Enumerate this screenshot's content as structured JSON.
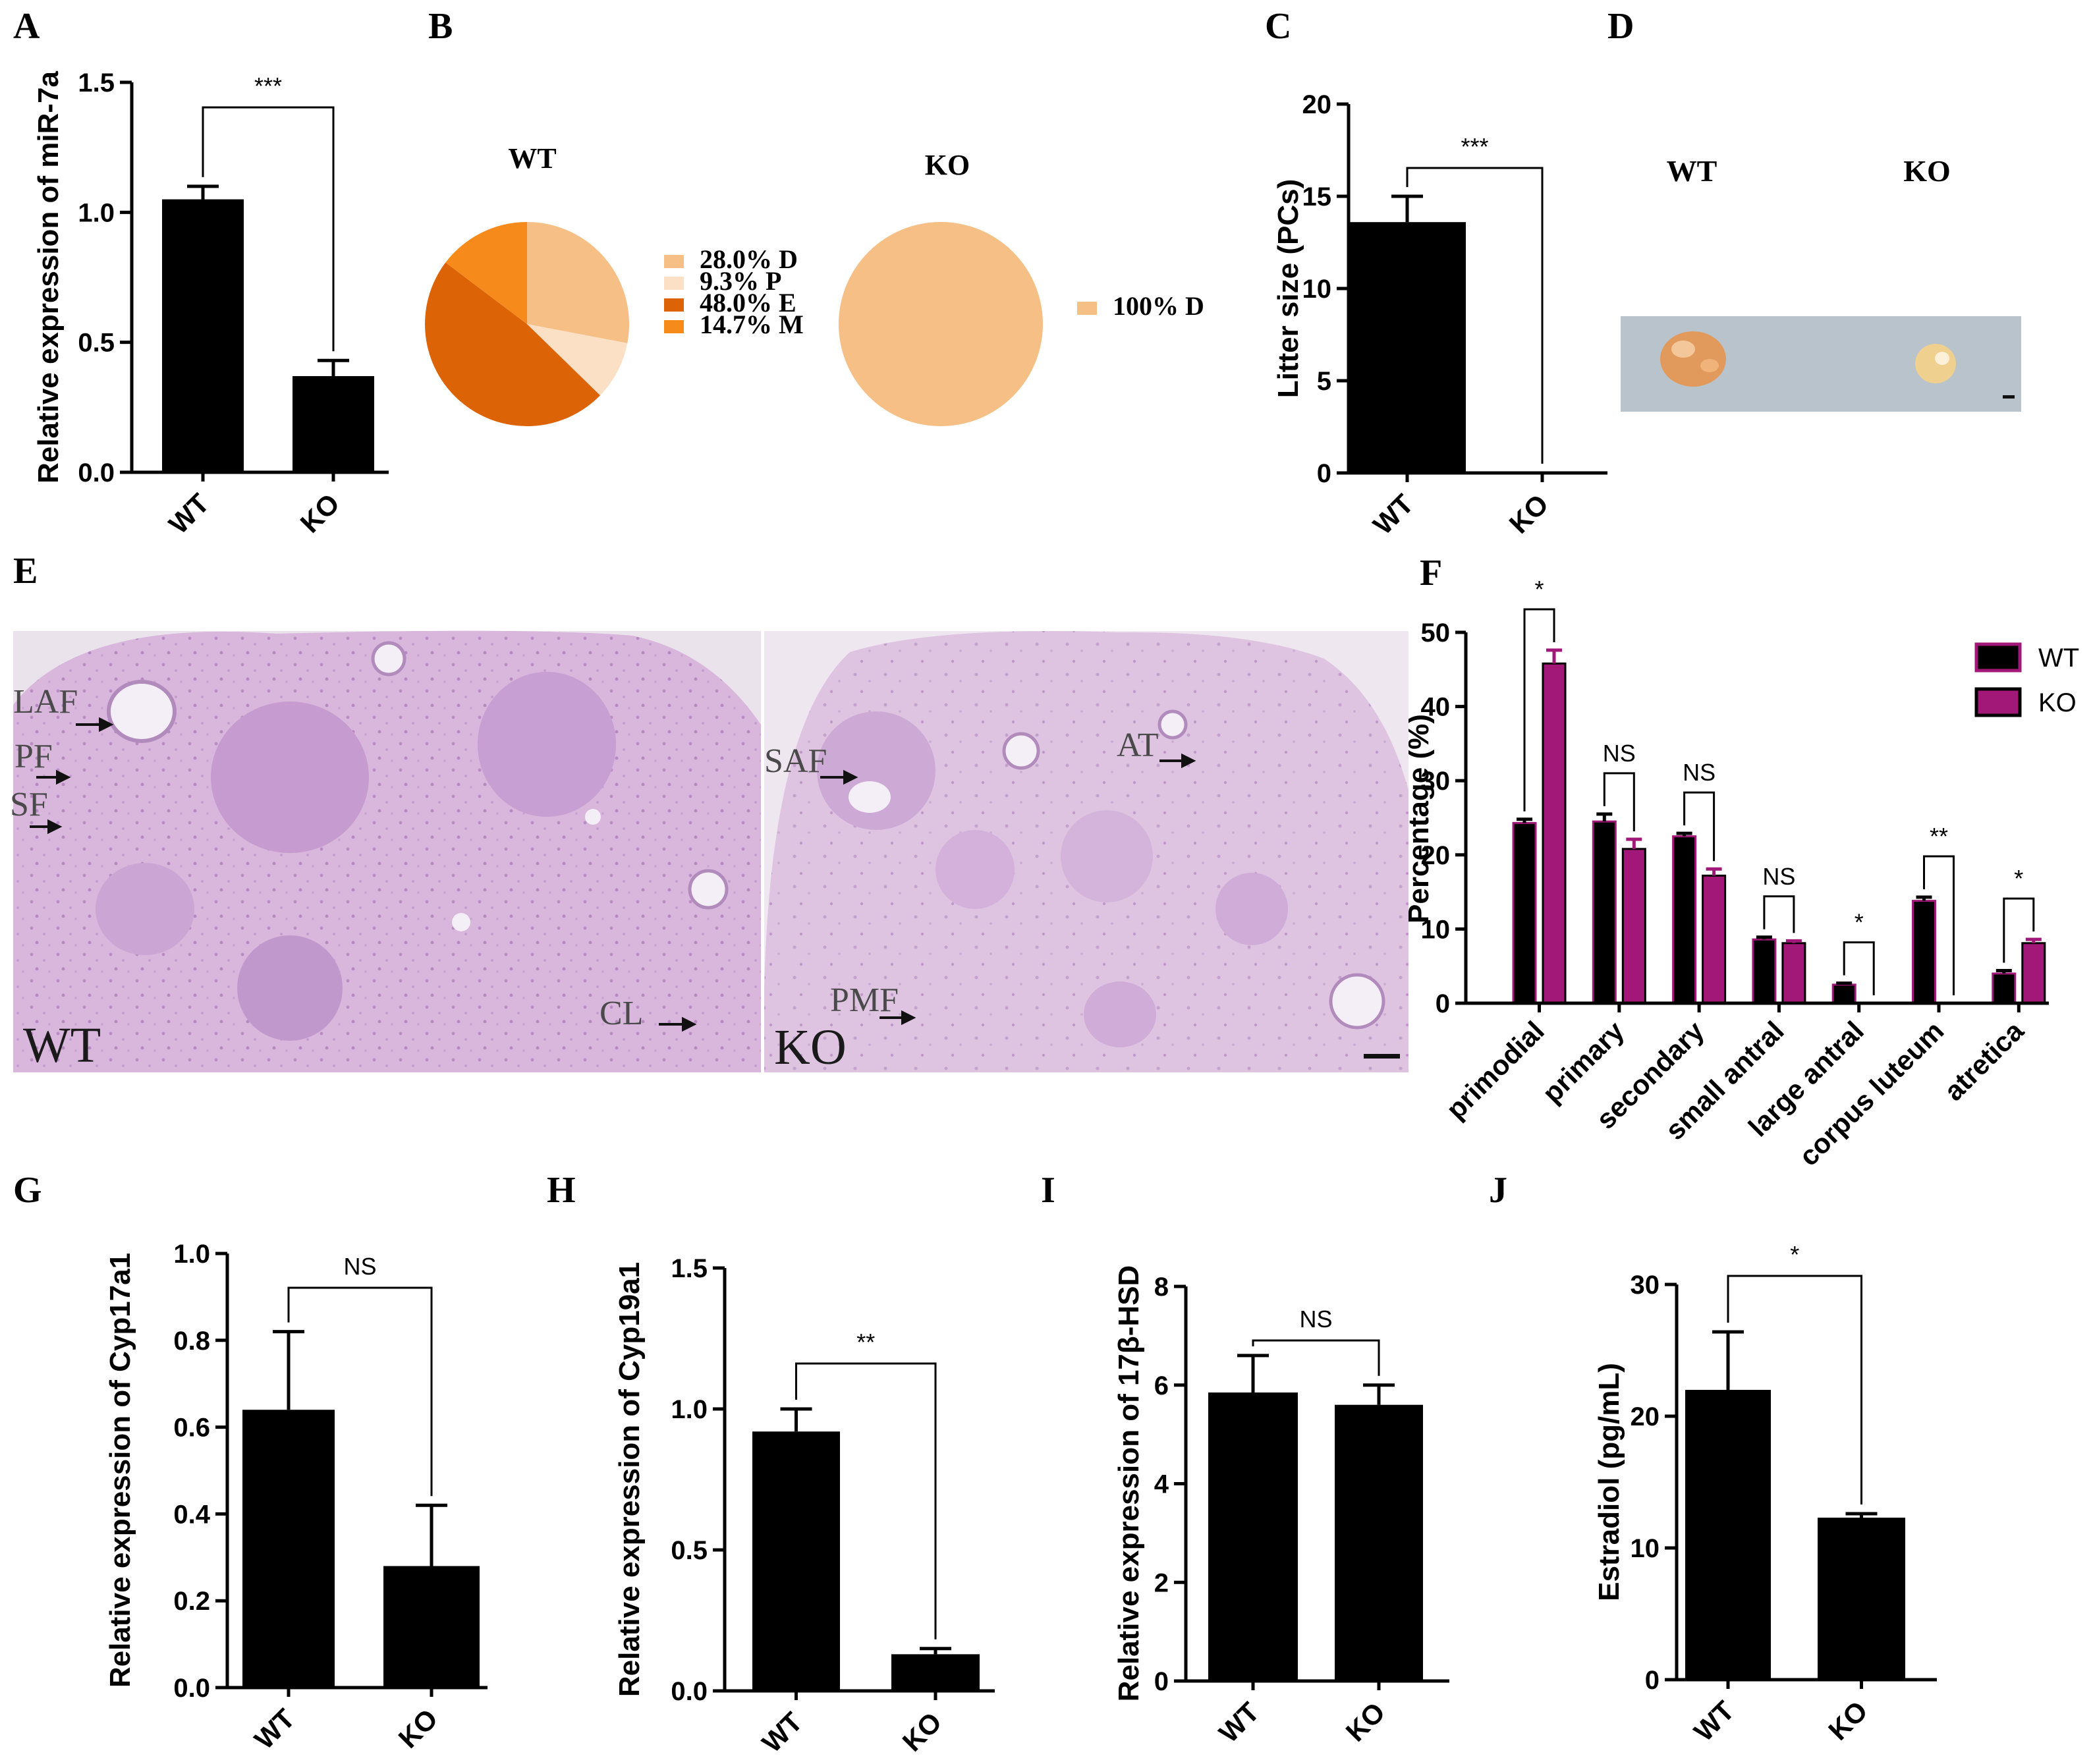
{
  "panel_labels": {
    "A": "A",
    "B": "B",
    "C": "C",
    "D": "D",
    "E": "E",
    "F": "F",
    "G": "G",
    "H": "H",
    "I": "I",
    "J": "J"
  },
  "colors": {
    "wt": "#000000",
    "ko": "#a21878",
    "pie_D": "#f6bf85",
    "pie_P": "#fbe0c6",
    "pie_E": "#dd6307",
    "pie_M": "#f68a1a",
    "photo_bg": "#b9c3cc",
    "histo": "#d7b5d8"
  },
  "chart_data": [
    {
      "id": "A",
      "type": "bar",
      "categories": [
        "WT",
        "KO"
      ],
      "values": [
        1.05,
        0.37
      ],
      "errors": [
        0.05,
        0.06
      ],
      "ylabel": "Relative expression of miR-7a",
      "ylim": [
        0,
        1.5
      ],
      "yticks": [
        0.0,
        0.5,
        1.0,
        1.5
      ],
      "tick_decimals": 1,
      "significance": "***"
    },
    {
      "id": "B",
      "type": "pie",
      "pies": [
        {
          "title": "WT",
          "slices": [
            {
              "label": "D",
              "value": 28.0,
              "text": "28.0%  D",
              "color": "#f6bf85"
            },
            {
              "label": "P",
              "value": 9.3,
              "text": "9.3%   P",
              "color": "#fbe0c6"
            },
            {
              "label": "E",
              "value": 48.0,
              "text": "48.0%  E",
              "color": "#dd6307"
            },
            {
              "label": "M",
              "value": 14.7,
              "text": "14.7%  M",
              "color": "#f68a1a"
            }
          ]
        },
        {
          "title": "KO",
          "slices": [
            {
              "label": "D",
              "value": 100,
              "text": "100%  D",
              "color": "#f6bf85"
            }
          ]
        }
      ]
    },
    {
      "id": "C",
      "type": "bar",
      "categories": [
        "WT",
        "KO"
      ],
      "values": [
        13.6,
        0
      ],
      "errors": [
        1.4,
        0
      ],
      "ylabel": "Litter size (PCs)",
      "ylim": [
        0,
        20
      ],
      "yticks": [
        0,
        5,
        10,
        15,
        20
      ],
      "tick_decimals": 0,
      "significance": "***"
    },
    {
      "id": "F",
      "type": "bar",
      "categories": [
        "primodial",
        "primary",
        "secondary",
        "small antral",
        "large antral",
        "corpus luteum",
        "atretica"
      ],
      "series": [
        {
          "name": "WT",
          "values": [
            24.3,
            24.5,
            22.5,
            8.6,
            2.5,
            13.8,
            4.0
          ],
          "errors": [
            0.5,
            1.0,
            0.4,
            0.3,
            0.2,
            0.5,
            0.4
          ]
        },
        {
          "name": "KO",
          "values": [
            45.8,
            20.8,
            17.2,
            8.1,
            0,
            0,
            8.1
          ],
          "errors": [
            1.8,
            1.3,
            0.9,
            0.3,
            0,
            0,
            0.5
          ]
        }
      ],
      "ylabel": "Percentage (%)",
      "ylim": [
        0,
        50
      ],
      "yticks": [
        0,
        10,
        20,
        30,
        40,
        50
      ],
      "tick_decimals": 0,
      "significance": [
        "*",
        "NS",
        "NS",
        "NS",
        "*",
        "**",
        "*"
      ]
    },
    {
      "id": "G",
      "type": "bar",
      "categories": [
        "WT",
        "KO"
      ],
      "values": [
        0.64,
        0.28
      ],
      "errors": [
        0.18,
        0.14
      ],
      "ylabel": "Relative expression of Cyp17a1",
      "ylim": [
        0,
        1.0
      ],
      "yticks": [
        0.0,
        0.2,
        0.4,
        0.6,
        0.8,
        1.0
      ],
      "tick_decimals": 1,
      "significance": "NS"
    },
    {
      "id": "H",
      "type": "bar",
      "categories": [
        "WT",
        "KO"
      ],
      "values": [
        0.92,
        0.13
      ],
      "errors": [
        0.08,
        0.02
      ],
      "ylabel": "Relative expression of Cyp19a1",
      "ylim": [
        0,
        1.5
      ],
      "yticks": [
        0.0,
        0.5,
        1.0,
        1.5
      ],
      "tick_decimals": 1,
      "significance": "**"
    },
    {
      "id": "I",
      "type": "bar",
      "categories": [
        "WT",
        "KO"
      ],
      "values": [
        5.85,
        5.6
      ],
      "errors": [
        0.75,
        0.4
      ],
      "ylabel": "Relative expression of 17β-HSD",
      "ylim": [
        0,
        8
      ],
      "yticks": [
        0,
        2,
        4,
        6,
        8
      ],
      "tick_decimals": 0,
      "significance": "NS"
    },
    {
      "id": "J",
      "type": "bar",
      "categories": [
        "WT",
        "KO"
      ],
      "values": [
        22.0,
        12.3
      ],
      "errors": [
        4.4,
        0.3
      ],
      "ylabel": "Estradiol (pg/mL)",
      "ylim": [
        0,
        30
      ],
      "yticks": [
        0,
        10,
        20,
        30
      ],
      "tick_decimals": 0,
      "significance": "*"
    }
  ],
  "photo_D": {
    "labels": [
      "WT",
      "KO"
    ]
  },
  "histology_E": {
    "wt": {
      "label": "WT",
      "annotations": [
        "LAF",
        "PF",
        "SF",
        "CL"
      ]
    },
    "ko": {
      "label": "KO",
      "annotations": [
        "SAF",
        "AT",
        "PMF"
      ]
    }
  }
}
